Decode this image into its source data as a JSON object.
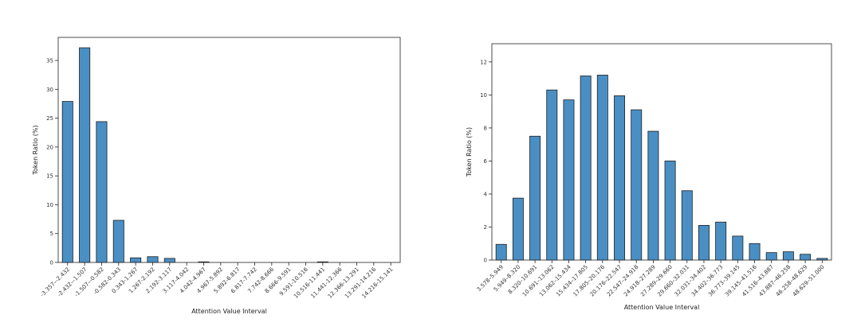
{
  "chart_data": [
    {
      "type": "bar",
      "xlabel": "Attention Value Interval",
      "ylabel": "Token Ratio (%)",
      "ylim": [
        0,
        39
      ],
      "yticks": [
        0,
        5,
        10,
        15,
        20,
        25,
        30,
        35
      ],
      "bar_color": "#4a8fc4",
      "categories": [
        "-3.357–-2.432",
        "-2.432–-1.507",
        "-1.507–-0.582",
        "-0.582-0.343",
        "0.343-1.267",
        "1.267-2.192",
        "2.192-3.117",
        "3.117-4.042",
        "4.042-4.967",
        "4.967-5.892",
        "5.892-6.817",
        "6.817-7.742",
        "7.742-8.666",
        "8.666-9.591",
        "9.591-10.516",
        "10.516-11.441",
        "11.441-12.366",
        "12.366-13.291",
        "13.291-14.216",
        "14.216-15.141"
      ],
      "values": [
        27.9,
        37.2,
        24.4,
        7.3,
        0.8,
        1.0,
        0.7,
        0.0,
        0.1,
        0.0,
        0.0,
        0.0,
        0.0,
        0.0,
        0.0,
        0.1,
        0.0,
        0.0,
        0.0,
        0.0
      ]
    },
    {
      "type": "bar",
      "xlabel": "Attention Value Interval",
      "ylabel": "Token Ratio (%)",
      "ylim": [
        0,
        13.1
      ],
      "yticks": [
        0,
        2,
        4,
        6,
        8,
        10,
        12
      ],
      "bar_color": "#4a8fc4",
      "categories": [
        "3.578–5.949",
        "5.949–8.320",
        "8.320–10.691",
        "10.691–13.062",
        "13.062–15.434",
        "15.434–17.805",
        "17.805–20.176",
        "20.176–22.547",
        "22.547–24.918",
        "24.918–27.289",
        "27.289–29.660",
        "29.660–32.031",
        "32.031–34.402",
        "34.402–36.773",
        "36.773–39.145",
        "39.145–41.516",
        "41.516–43.887",
        "43.887–46.258",
        "46.258–48.629",
        "48.629–51.000"
      ],
      "values": [
        0.95,
        3.75,
        7.5,
        10.3,
        9.7,
        11.15,
        11.2,
        9.95,
        9.1,
        7.8,
        6.0,
        4.2,
        2.1,
        2.3,
        1.45,
        1.0,
        0.45,
        0.5,
        0.35,
        0.1
      ]
    }
  ]
}
